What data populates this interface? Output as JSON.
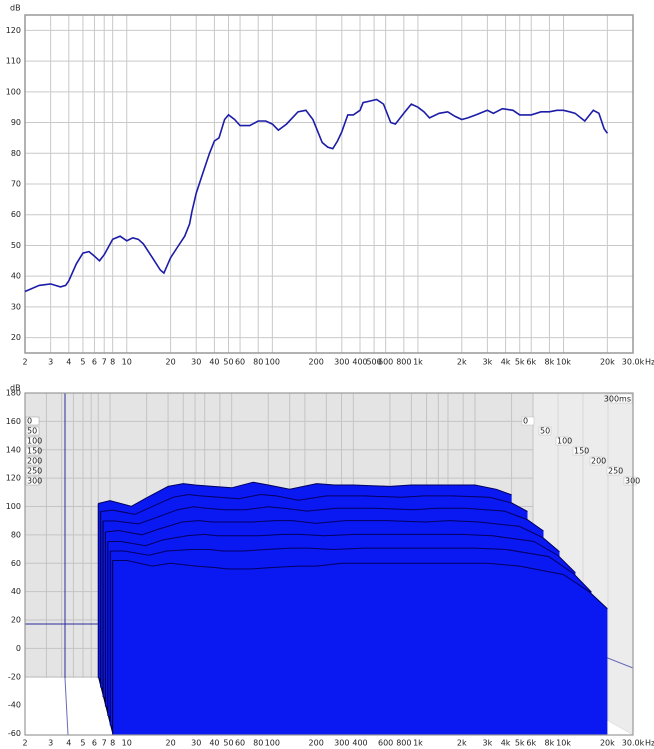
{
  "chart_data": [
    {
      "type": "line",
      "ylabel": "dB",
      "xlabel": "Hz",
      "color": "#1c1ca8",
      "log_x": true,
      "grid": true,
      "xlim": [
        2,
        30000
      ],
      "ylim": [
        15,
        125
      ],
      "xticks": [
        2,
        3,
        4,
        5,
        6,
        7,
        8,
        10,
        20,
        30,
        40,
        50,
        60,
        80,
        100,
        200,
        300,
        400,
        500,
        600,
        800,
        {
          "value": 1000,
          "label": "1k"
        },
        {
          "value": 2000,
          "label": "2k"
        },
        {
          "value": 3000,
          "label": "3k"
        },
        {
          "value": 4000,
          "label": "4k"
        },
        {
          "value": 5000,
          "label": "5k"
        },
        {
          "value": 6000,
          "label": "6k"
        },
        {
          "value": 8000,
          "label": "8k"
        },
        {
          "value": 10000,
          "label": "10k"
        },
        {
          "value": 20000,
          "label": "20k"
        },
        {
          "value": 30000,
          "label": "30.0k"
        }
      ],
      "yticks": [
        20,
        30,
        40,
        50,
        60,
        70,
        80,
        90,
        100,
        110,
        120
      ],
      "x": [
        2,
        2.5,
        3,
        3.5,
        3.8,
        4,
        4.5,
        5,
        5.5,
        6,
        6.5,
        7,
        8,
        9,
        10,
        11,
        12,
        13,
        15,
        17,
        18,
        20,
        22,
        25,
        27,
        28,
        30,
        33,
        37,
        40,
        43,
        47,
        50,
        55,
        60,
        70,
        80,
        90,
        100,
        110,
        125,
        150,
        170,
        190,
        220,
        240,
        260,
        280,
        300,
        330,
        360,
        400,
        420,
        470,
        520,
        580,
        650,
        700,
        800,
        900,
        1000,
        1100,
        1200,
        1400,
        1600,
        1800,
        2000,
        2200,
        2500,
        3000,
        3300,
        3800,
        4500,
        5000,
        6000,
        7000,
        8000,
        9000,
        10000,
        11000,
        12000,
        14000,
        16000,
        17500,
        19000,
        20000
      ],
      "values": [
        35,
        37,
        37.5,
        36.5,
        37,
        38.5,
        44,
        47.5,
        48,
        46.5,
        45,
        47,
        52,
        53,
        51.5,
        52.5,
        52,
        50.5,
        46,
        42,
        41,
        46,
        49,
        53,
        57,
        61,
        67,
        73,
        80,
        84,
        85,
        91,
        92.5,
        91,
        89,
        89,
        90.5,
        90.5,
        89.5,
        87.5,
        89.5,
        93.5,
        94,
        91,
        83.5,
        82,
        81.5,
        84,
        87,
        92.5,
        92.5,
        94,
        96.5,
        97,
        97.5,
        96,
        90,
        89.5,
        93,
        96,
        95,
        93.5,
        91.5,
        93,
        93.5,
        92,
        91,
        91.5,
        92.5,
        94,
        93,
        94.5,
        94,
        92.5,
        92.5,
        93.5,
        93.5,
        94,
        94,
        93.5,
        93,
        90.5,
        94,
        93,
        88,
        86.5
      ]
    },
    {
      "type": "waterfall",
      "ylabel": "dB",
      "xlabel": "Hz",
      "time_label": "300ms",
      "color": "#0a18f2",
      "log_x": true,
      "grid": true,
      "xlim": [
        2,
        30000
      ],
      "ylim": [
        -61,
        180
      ],
      "xticks": [
        2,
        3,
        4,
        5,
        6,
        7,
        8,
        10,
        20,
        30,
        40,
        50,
        60,
        80,
        100,
        200,
        300,
        400,
        600,
        800,
        {
          "value": 1000,
          "label": "1k"
        },
        {
          "value": 2000,
          "label": "2k"
        },
        {
          "value": 3000,
          "label": "3k"
        },
        {
          "value": 4000,
          "label": "4k"
        },
        {
          "value": 5000,
          "label": "5k"
        },
        {
          "value": 6000,
          "label": "6k"
        },
        {
          "value": 8000,
          "label": "8k"
        },
        {
          "value": 10000,
          "label": "10k"
        },
        {
          "value": 20000,
          "label": "20k"
        },
        {
          "value": 30000,
          "label": "30.0k"
        }
      ],
      "yticks": [
        -60,
        -40,
        -20,
        0,
        20,
        40,
        60,
        80,
        100,
        120,
        140,
        160,
        180
      ],
      "x": [
        8,
        10,
        15,
        20,
        30,
        40,
        50,
        70,
        100,
        150,
        200,
        300,
        500,
        700,
        1000,
        2000,
        3000,
        5000,
        10000,
        15000,
        20000
      ],
      "series": [
        {
          "name": "0",
          "values": [
            62,
            64,
            60,
            66,
            74,
            76,
            75,
            74,
            73,
            77,
            75,
            72,
            76,
            75,
            75,
            74,
            75,
            75,
            75,
            72,
            68
          ]
        },
        {
          "name": "50",
          "values": [
            63,
            64,
            61,
            66,
            73,
            75,
            74,
            73,
            72,
            75,
            74,
            71,
            74,
            74,
            74,
            73,
            74,
            74,
            73,
            69,
            63
          ]
        },
        {
          "name": "100",
          "values": [
            63,
            63,
            61,
            65,
            71,
            73,
            72,
            71,
            71,
            73,
            72,
            70,
            72,
            72,
            72,
            71,
            72,
            72,
            70,
            64,
            56
          ]
        },
        {
          "name": "150",
          "values": [
            62,
            63,
            60,
            64,
            69,
            70,
            69,
            69,
            69,
            70,
            70,
            68,
            70,
            70,
            70,
            69,
            70,
            69,
            66,
            58,
            48
          ]
        },
        {
          "name": "200",
          "values": [
            62,
            62,
            59,
            63,
            66,
            67,
            66,
            66,
            66,
            67,
            67,
            66,
            67,
            67,
            67,
            67,
            67,
            66,
            62,
            52,
            40
          ]
        },
        {
          "name": "250",
          "values": [
            62,
            62,
            59,
            62,
            63,
            63,
            62,
            62,
            63,
            64,
            64,
            63,
            64,
            64,
            64,
            64,
            64,
            63,
            58,
            46,
            33
          ]
        },
        {
          "name": "300",
          "values": [
            62,
            62,
            58,
            60,
            58,
            57,
            56,
            56,
            57,
            58,
            58,
            60,
            60,
            60,
            60,
            60,
            60,
            58,
            52,
            40,
            28
          ]
        }
      ]
    }
  ]
}
